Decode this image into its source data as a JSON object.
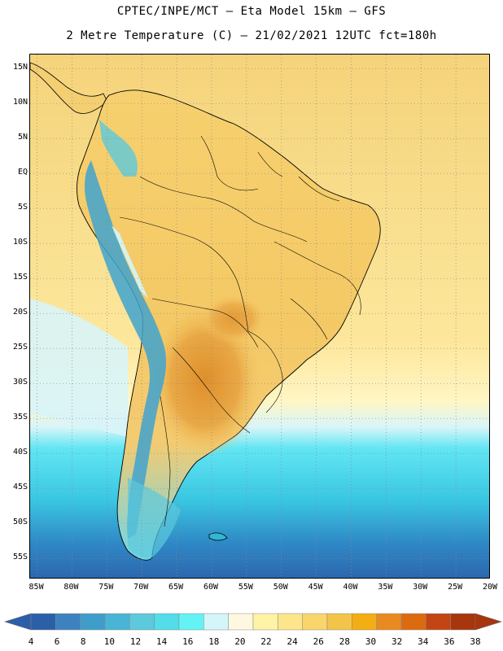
{
  "header": {
    "line1": "CPTEC/INPE/MCT –  Eta Model 15km – GFS",
    "line2": "2 Metre Temperature (C) – 21/02/2021 12UTC fct=180h"
  },
  "map": {
    "lat_labels": [
      "15N",
      "10N",
      "5N",
      "EQ",
      "5S",
      "10S",
      "15S",
      "20S",
      "25S",
      "30S",
      "35S",
      "40S",
      "45S",
      "50S",
      "55S"
    ],
    "lat_values": [
      15,
      10,
      5,
      0,
      -5,
      -10,
      -15,
      -20,
      -25,
      -30,
      -35,
      -40,
      -45,
      -50,
      -55
    ],
    "lon_labels": [
      "85W",
      "80W",
      "75W",
      "70W",
      "65W",
      "60W",
      "55W",
      "50W",
      "45W",
      "40W",
      "35W",
      "30W",
      "25W",
      "20W"
    ],
    "lon_values": [
      -85,
      -80,
      -75,
      -70,
      -65,
      -60,
      -55,
      -50,
      -45,
      -40,
      -35,
      -30,
      -25,
      -20
    ],
    "extent": {
      "lon_min": -86,
      "lon_max": -20,
      "lat_min": -58,
      "lat_max": 17
    },
    "palette": {
      "ocean_warm": "#f6dc8c",
      "ocean_mid": "#fff1a6",
      "land": "#f4cf72",
      "hot": "#e59a35",
      "cool_shelf": "#d8f4f8",
      "cyan": "#4de0f0",
      "blue_mid": "#2fb7d6",
      "blue_deep": "#2e6fb2",
      "andes": "#3fa3cf"
    }
  },
  "legend": {
    "labels": [
      "4",
      "6",
      "8",
      "10",
      "12",
      "14",
      "16",
      "18",
      "20",
      "22",
      "24",
      "26",
      "28",
      "30",
      "32",
      "34",
      "36",
      "38"
    ],
    "colors": [
      "#2b5fa8",
      "#3b82bf",
      "#3f9ec9",
      "#49b4d6",
      "#5cc9dc",
      "#52dde8",
      "#63f3f6",
      "#d3f6fb",
      "#fff8e1",
      "#fff3a6",
      "#fde68a",
      "#f9d66b",
      "#f3c447",
      "#f2ae12",
      "#e98a20",
      "#dc6a0f",
      "#c24513",
      "#a8350e"
    ]
  }
}
